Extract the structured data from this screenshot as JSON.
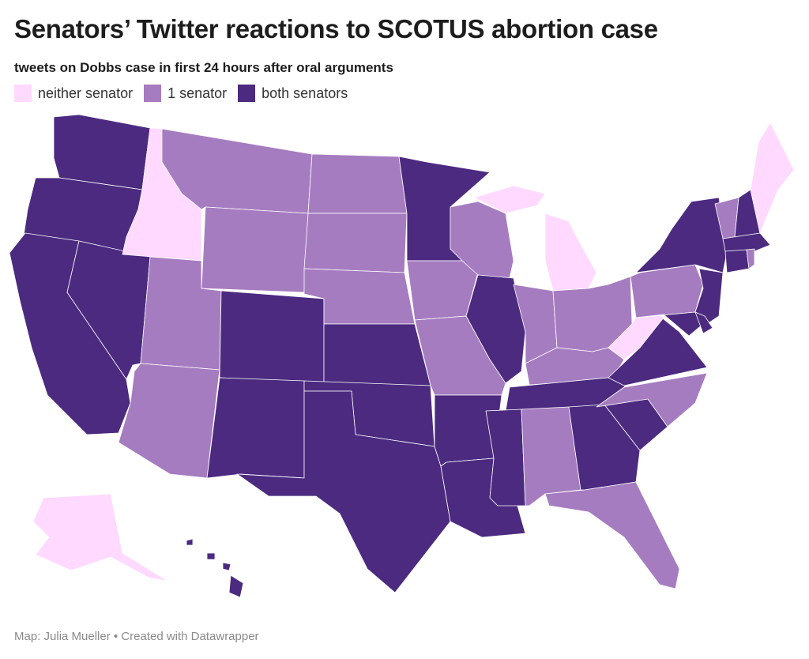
{
  "title": "Senators’ Twitter reactions to SCOTUS abortion case",
  "subtitle": "tweets on Dobbs case in first 24 hours after oral arguments",
  "legend": [
    {
      "key": "neither",
      "label": "neither senator",
      "color": "#ffd9ff"
    },
    {
      "key": "one",
      "label": "1 senator",
      "color": "#a67cc0"
    },
    {
      "key": "both",
      "label": "both senators",
      "color": "#4b2a80"
    }
  ],
  "states": [
    {
      "state": "WA",
      "category": "both"
    },
    {
      "state": "OR",
      "category": "both"
    },
    {
      "state": "CA",
      "category": "both"
    },
    {
      "state": "NV",
      "category": "both"
    },
    {
      "state": "ID",
      "category": "neither"
    },
    {
      "state": "MT",
      "category": "one"
    },
    {
      "state": "WY",
      "category": "one"
    },
    {
      "state": "UT",
      "category": "one"
    },
    {
      "state": "AZ",
      "category": "one"
    },
    {
      "state": "CO",
      "category": "both"
    },
    {
      "state": "NM",
      "category": "both"
    },
    {
      "state": "ND",
      "category": "one"
    },
    {
      "state": "SD",
      "category": "one"
    },
    {
      "state": "NE",
      "category": "one"
    },
    {
      "state": "KS",
      "category": "both"
    },
    {
      "state": "OK",
      "category": "both"
    },
    {
      "state": "TX",
      "category": "both"
    },
    {
      "state": "MN",
      "category": "both"
    },
    {
      "state": "IA",
      "category": "one"
    },
    {
      "state": "MO",
      "category": "one"
    },
    {
      "state": "AR",
      "category": "both"
    },
    {
      "state": "LA",
      "category": "both"
    },
    {
      "state": "WI",
      "category": "one"
    },
    {
      "state": "IL",
      "category": "both"
    },
    {
      "state": "MI",
      "category": "neither"
    },
    {
      "state": "IN",
      "category": "one"
    },
    {
      "state": "OH",
      "category": "one"
    },
    {
      "state": "KY",
      "category": "one"
    },
    {
      "state": "TN",
      "category": "both"
    },
    {
      "state": "MS",
      "category": "both"
    },
    {
      "state": "AL",
      "category": "one"
    },
    {
      "state": "GA",
      "category": "both"
    },
    {
      "state": "FL",
      "category": "one"
    },
    {
      "state": "SC",
      "category": "both"
    },
    {
      "state": "NC",
      "category": "one"
    },
    {
      "state": "VA",
      "category": "both"
    },
    {
      "state": "WV",
      "category": "neither"
    },
    {
      "state": "PA",
      "category": "one"
    },
    {
      "state": "NY",
      "category": "both"
    },
    {
      "state": "NJ",
      "category": "both"
    },
    {
      "state": "MD",
      "category": "both"
    },
    {
      "state": "DE",
      "category": "both"
    },
    {
      "state": "VT",
      "category": "one"
    },
    {
      "state": "NH",
      "category": "both"
    },
    {
      "state": "ME",
      "category": "neither"
    },
    {
      "state": "MA",
      "category": "both"
    },
    {
      "state": "CT",
      "category": "both"
    },
    {
      "state": "RI",
      "category": "one"
    },
    {
      "state": "AK",
      "category": "neither"
    },
    {
      "state": "HI",
      "category": "both"
    }
  ],
  "footer": "Map: Julia Mueller • Created with Datawrapper"
}
